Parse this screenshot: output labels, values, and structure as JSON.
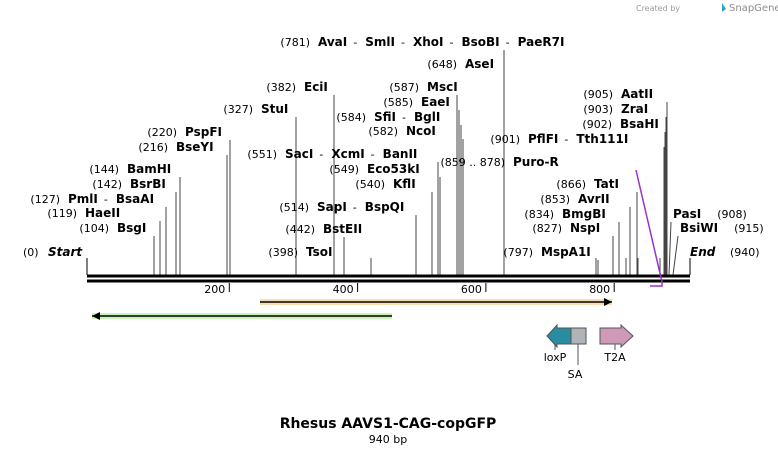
{
  "credit": {
    "prefix": "Created by",
    "brand": "SnapGene"
  },
  "map": {
    "title": "Rhesus AAVS1-CAG-copGFP",
    "length_label": "940 bp",
    "total_bp": 940
  },
  "colors": {
    "purple": "#9b30d0",
    "orange_feature": "#f0a020",
    "green_feature": "#66dd33",
    "loxp": "#2a8ca0",
    "sa": "#b0b4b8",
    "t2a": "#cf9ab8"
  },
  "axis": {
    "ticks": [
      {
        "bp": 200,
        "label": "200"
      },
      {
        "bp": 400,
        "label": "400"
      },
      {
        "bp": 600,
        "label": "600"
      },
      {
        "bp": 800,
        "label": "800"
      }
    ]
  },
  "sites": [
    {
      "id": "ava",
      "pos": "(781)",
      "names": [
        "AvaI",
        "SmlI",
        "XhoI",
        "BsoBI",
        "PaeR7I"
      ],
      "bp": 781,
      "purple": false
    },
    {
      "id": "ase",
      "pos": "(648)",
      "names": [
        "AseI"
      ],
      "bp": 648,
      "purple": false
    },
    {
      "id": "eci",
      "pos": "(382)",
      "names": [
        "EciI"
      ],
      "bp": 382,
      "purple": false
    },
    {
      "id": "msc",
      "pos": "(587)",
      "names": [
        "MscI"
      ],
      "bp": 587,
      "purple": false
    },
    {
      "id": "eae",
      "pos": "(585)",
      "names": [
        "EaeI"
      ],
      "bp": 585,
      "purple": false
    },
    {
      "id": "stu",
      "pos": "(327)",
      "names": [
        "StuI"
      ],
      "bp": 327,
      "purple": false
    },
    {
      "id": "sfi",
      "pos": "(584)",
      "names": [
        "SfiI",
        "BglI"
      ],
      "bp": 584,
      "purple": false
    },
    {
      "id": "nco",
      "pos": "(582)",
      "names": [
        "NcoI"
      ],
      "bp": 582,
      "purple": false
    },
    {
      "id": "psp",
      "pos": "(220)",
      "names": [
        "PspFI"
      ],
      "bp": 220,
      "purple": false
    },
    {
      "id": "bse",
      "pos": "(216)",
      "names": [
        "BseYI"
      ],
      "bp": 216,
      "purple": false
    },
    {
      "id": "sac",
      "pos": "(551)",
      "names": [
        "SacI",
        "XcmI",
        "BanII"
      ],
      "bp": 551,
      "purple": false
    },
    {
      "id": "eco",
      "pos": "(549)",
      "names": [
        "Eco53kI"
      ],
      "bp": 549,
      "purple": false
    },
    {
      "id": "kfl",
      "pos": "(540)",
      "names": [
        "KflI"
      ],
      "bp": 540,
      "purple": false
    },
    {
      "id": "bam",
      "pos": "(144)",
      "names": [
        "BamHI"
      ],
      "bp": 144,
      "purple": false
    },
    {
      "id": "bsr",
      "pos": "(142)",
      "names": [
        "BsrBI"
      ],
      "bp": 142,
      "purple": false
    },
    {
      "id": "pml",
      "pos": "(127)",
      "names": [
        "PmlI",
        "BsaAI"
      ],
      "bp": 127,
      "purple": false
    },
    {
      "id": "hae",
      "pos": "(119)",
      "names": [
        "HaeII"
      ],
      "bp": 119,
      "purple": false
    },
    {
      "id": "bsg",
      "pos": "(104)",
      "names": [
        "BsgI"
      ],
      "bp": 104,
      "purple": false
    },
    {
      "id": "sap",
      "pos": "(514)",
      "names": [
        "SapI",
        "BspQI"
      ],
      "bp": 514,
      "purple": false
    },
    {
      "id": "bst",
      "pos": "(442)",
      "names": [
        "BstEII"
      ],
      "bp": 442,
      "purple": false
    },
    {
      "id": "tso",
      "pos": "(398)",
      "names": [
        "TsoI"
      ],
      "bp": 398,
      "purple": false
    },
    {
      "id": "aat",
      "pos": "(905)",
      "names": [
        "AatII"
      ],
      "bp": 905,
      "purple": false
    },
    {
      "id": "zra",
      "pos": "(903)",
      "names": [
        "ZraI"
      ],
      "bp": 903,
      "purple": false
    },
    {
      "id": "bsah",
      "pos": "(902)",
      "names": [
        "BsaHI"
      ],
      "bp": 902,
      "purple": false
    },
    {
      "id": "pfl",
      "pos": "(901)",
      "names": [
        "PflFI",
        "Tth111I"
      ],
      "bp": 901,
      "purple": false
    },
    {
      "id": "puro",
      "pos": "(859 .. 878)",
      "names": [
        "Puro-R"
      ],
      "bp": 859,
      "purple": true
    },
    {
      "id": "tat",
      "pos": "(866)",
      "names": [
        "TatI"
      ],
      "bp": 866,
      "purple": false
    },
    {
      "id": "avr",
      "pos": "(853)",
      "names": [
        "AvrII"
      ],
      "bp": 853,
      "purple": false
    },
    {
      "id": "bmg",
      "pos": "(834)",
      "names": [
        "BmgBI"
      ],
      "bp": 834,
      "purple": false
    },
    {
      "id": "nsp",
      "pos": "(827)",
      "names": [
        "NspI"
      ],
      "bp": 827,
      "purple": false
    },
    {
      "id": "mspa",
      "pos": "(797)",
      "names": [
        "MspA1I"
      ],
      "bp": 797,
      "purple": false
    },
    {
      "id": "pas",
      "pos": "(908)",
      "names": [
        "PasI"
      ],
      "bp": 908,
      "purple": false
    },
    {
      "id": "bsiw",
      "pos": "(915)",
      "names": [
        "BsiWI"
      ],
      "bp": 915,
      "purple": false
    }
  ],
  "ends": {
    "start": {
      "pos": "(0)",
      "label": "Start"
    },
    "end": {
      "pos": "(940)",
      "label": "End"
    }
  },
  "features": [
    {
      "id": "orange",
      "label": "",
      "start_bp": 269,
      "end_bp": 822,
      "direction": "forward",
      "color": "#f0a020"
    },
    {
      "id": "green",
      "label": "",
      "start_bp": 10,
      "end_bp": 475,
      "direction": "reverse",
      "color": "#66dd33"
    }
  ],
  "small_features": {
    "loxp": {
      "label": "loxP"
    },
    "sa": {
      "label": "SA"
    },
    "t2a": {
      "label": "T2A"
    }
  }
}
